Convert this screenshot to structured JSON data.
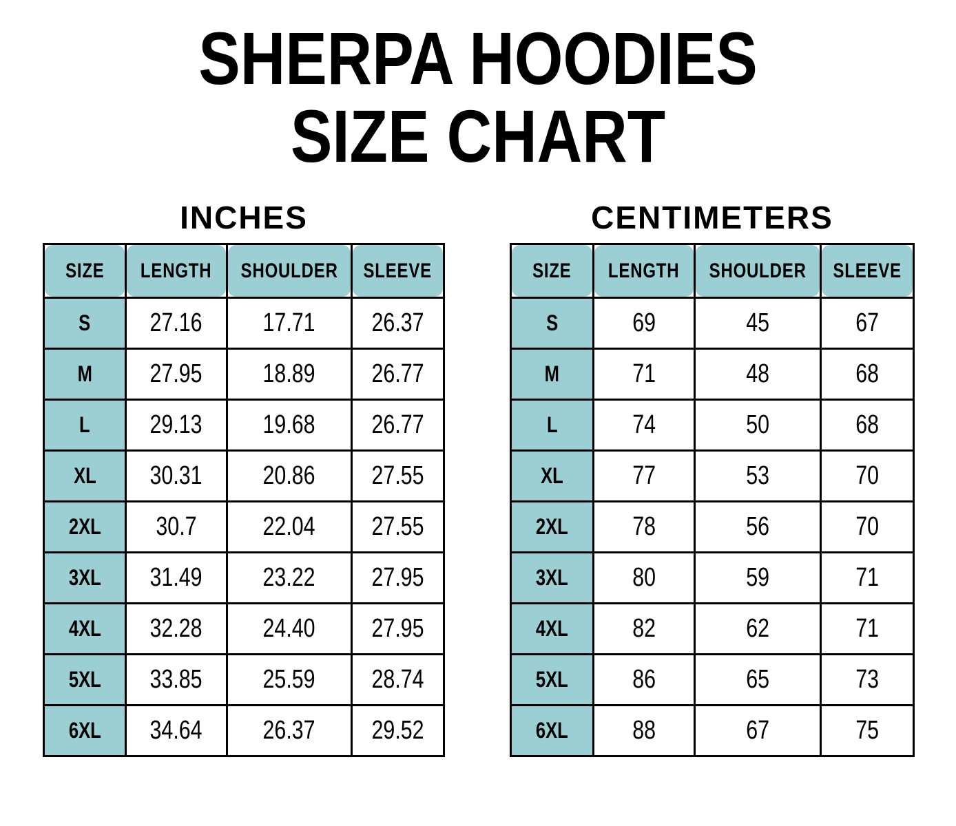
{
  "title": {
    "line1": "SHERPA HOODIES",
    "line2": "SIZE CHART"
  },
  "colors": {
    "header_bg": "#9ccfd3",
    "border": "#000000",
    "text": "#000000",
    "page_bg": "#ffffff"
  },
  "tables": [
    {
      "heading": "INCHES",
      "columns": [
        "SIZE",
        "LENGTH",
        "SHOULDER",
        "SLEEVE"
      ],
      "rows": [
        {
          "size": "S",
          "values": [
            "27.16",
            "17.71",
            "26.37"
          ]
        },
        {
          "size": "M",
          "values": [
            "27.95",
            "18.89",
            "26.77"
          ]
        },
        {
          "size": "L",
          "values": [
            "29.13",
            "19.68",
            "26.77"
          ]
        },
        {
          "size": "XL",
          "values": [
            "30.31",
            "20.86",
            "27.55"
          ]
        },
        {
          "size": "2XL",
          "values": [
            "30.7",
            "22.04",
            "27.55"
          ]
        },
        {
          "size": "3XL",
          "values": [
            "31.49",
            "23.22",
            "27.95"
          ]
        },
        {
          "size": "4XL",
          "values": [
            "32.28",
            "24.40",
            "27.95"
          ]
        },
        {
          "size": "5XL",
          "values": [
            "33.85",
            "25.59",
            "28.74"
          ]
        },
        {
          "size": "6XL",
          "values": [
            "34.64",
            "26.37",
            "29.52"
          ]
        }
      ]
    },
    {
      "heading": "CENTIMETERS",
      "columns": [
        "SIZE",
        "LENGTH",
        "SHOULDER",
        "SLEEVE"
      ],
      "rows": [
        {
          "size": "S",
          "values": [
            "69",
            "45",
            "67"
          ]
        },
        {
          "size": "M",
          "values": [
            "71",
            "48",
            "68"
          ]
        },
        {
          "size": "L",
          "values": [
            "74",
            "50",
            "68"
          ]
        },
        {
          "size": "XL",
          "values": [
            "77",
            "53",
            "70"
          ]
        },
        {
          "size": "2XL",
          "values": [
            "78",
            "56",
            "70"
          ]
        },
        {
          "size": "3XL",
          "values": [
            "80",
            "59",
            "71"
          ]
        },
        {
          "size": "4XL",
          "values": [
            "82",
            "62",
            "71"
          ]
        },
        {
          "size": "5XL",
          "values": [
            "86",
            "65",
            "73"
          ]
        },
        {
          "size": "6XL",
          "values": [
            "88",
            "67",
            "75"
          ]
        }
      ]
    }
  ]
}
